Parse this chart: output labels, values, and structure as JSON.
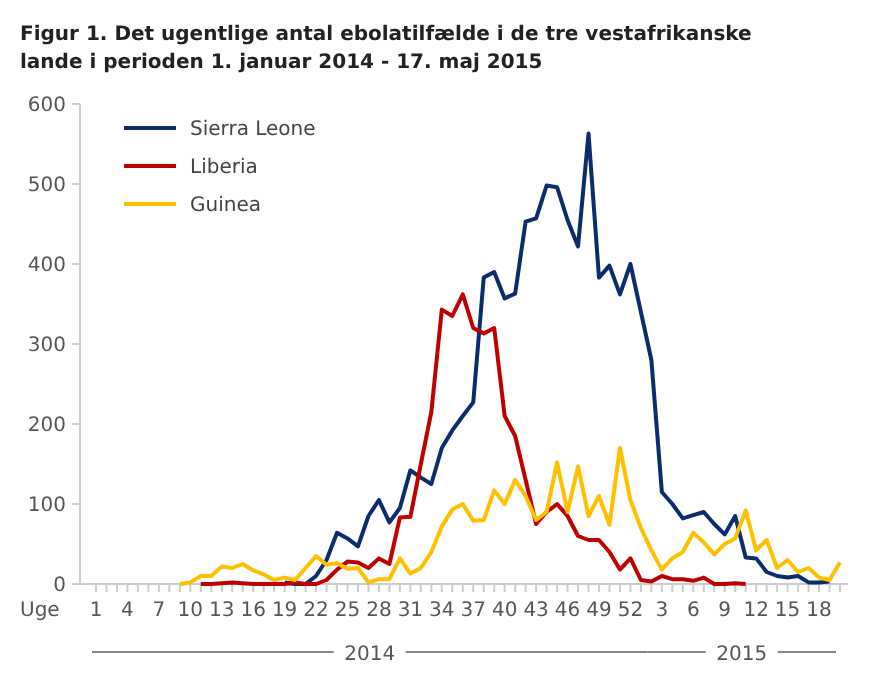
{
  "chart_data": {
    "type": "line",
    "title": "Figur 1. Det ugentlige antal ebolatilfælde i de tre vestafrikanske lande i perioden 1. januar 2014 - 17. maj 2015",
    "xlabel": "Uge",
    "categories": [
      "1",
      null,
      null,
      "4",
      null,
      null,
      "7",
      null,
      null,
      "10",
      null,
      null,
      "13",
      null,
      null,
      "16",
      null,
      null,
      "19",
      null,
      null,
      "22",
      null,
      null,
      "25",
      null,
      null,
      "28",
      null,
      null,
      "31",
      null,
      null,
      "34",
      null,
      null,
      "37",
      null,
      null,
      "40",
      null,
      null,
      "43",
      null,
      null,
      "46",
      null,
      null,
      "49",
      null,
      null,
      "52",
      null,
      null,
      "3",
      null,
      null,
      "6",
      null,
      null,
      "9",
      null,
      null,
      "12",
      null,
      null,
      "15",
      null,
      null,
      "18",
      null,
      null
    ],
    "annotations": [
      "2014",
      "2015"
    ],
    "series": [
      {
        "name": "Sierra Leone",
        "color": "#0c2d6b",
        "values": [
          null,
          null,
          null,
          null,
          null,
          null,
          null,
          null,
          null,
          null,
          null,
          null,
          null,
          null,
          null,
          null,
          null,
          null,
          2,
          0,
          0,
          10,
          30,
          64,
          57,
          47,
          85,
          105,
          77,
          95,
          142,
          133,
          125,
          170,
          192,
          210,
          227,
          383,
          390,
          357,
          363,
          453,
          457,
          498,
          496,
          455,
          422,
          563,
          383,
          398,
          362,
          400,
          340,
          280,
          115,
          100,
          82,
          86,
          90,
          75,
          62,
          85,
          33,
          32,
          15,
          10,
          8,
          10,
          2,
          2,
          3,
          null
        ]
      },
      {
        "name": "Liberia",
        "color": "#c00000",
        "values": [
          null,
          null,
          null,
          null,
          null,
          null,
          null,
          null,
          null,
          null,
          0,
          0,
          1,
          2,
          1,
          0,
          0,
          0,
          0,
          2,
          0,
          0,
          5,
          18,
          28,
          27,
          20,
          32,
          25,
          83,
          84,
          150,
          215,
          343,
          335,
          362,
          320,
          313,
          320,
          210,
          185,
          130,
          75,
          90,
          100,
          85,
          60,
          55,
          55,
          40,
          18,
          32,
          5,
          3,
          10,
          6,
          6,
          4,
          8,
          0,
          0,
          1,
          0,
          null,
          null,
          null,
          null,
          null,
          null,
          null,
          null,
          null
        ]
      },
      {
        "name": "Guinea",
        "color": "#ffc000",
        "values": [
          null,
          null,
          null,
          null,
          null,
          null,
          null,
          null,
          0,
          2,
          10,
          10,
          22,
          20,
          25,
          17,
          12,
          5,
          8,
          5,
          20,
          35,
          24,
          26,
          19,
          20,
          2,
          6,
          6,
          32,
          13,
          20,
          40,
          72,
          93,
          100,
          79,
          80,
          117,
          100,
          130,
          110,
          80,
          90,
          152,
          90,
          147,
          85,
          110,
          74,
          170,
          105,
          70,
          42,
          18,
          32,
          40,
          64,
          52,
          37,
          50,
          57,
          92,
          42,
          55,
          20,
          30,
          15,
          20,
          8,
          5,
          27
        ]
      }
    ],
    "ylim": [
      0,
      600
    ],
    "yticks": [
      0,
      100,
      200,
      300,
      400,
      500,
      600
    ],
    "legend": "top left",
    "grid": false
  }
}
